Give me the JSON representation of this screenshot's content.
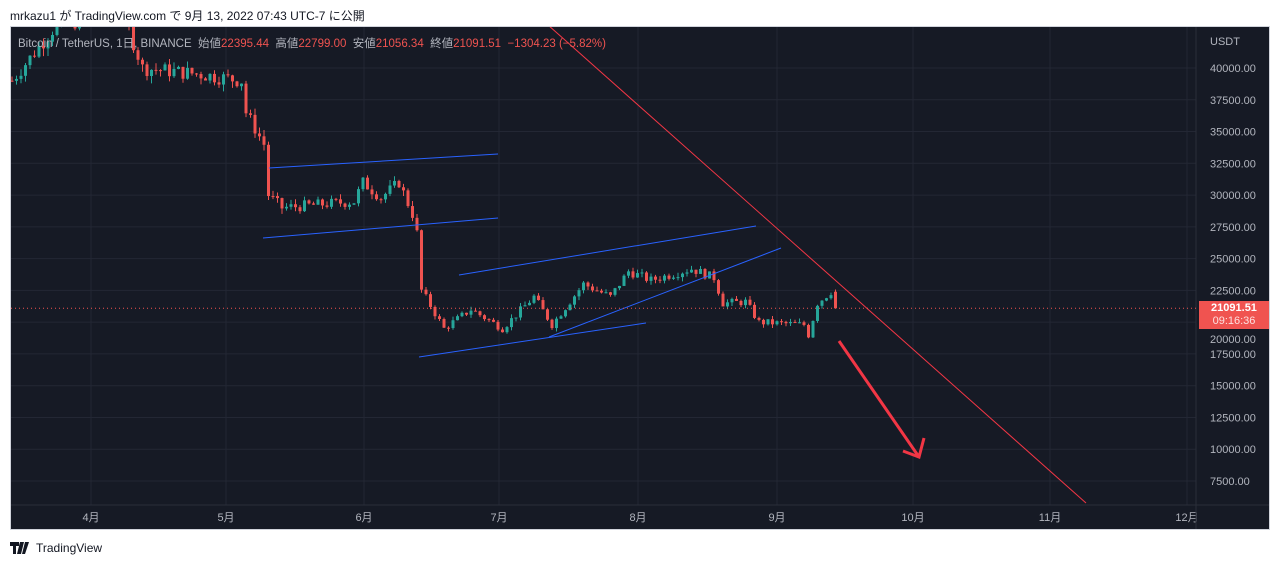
{
  "header": {
    "text": "mrkazu1 が TradingView.com で 9月 13, 2022 07:43 UTC-7 に公開"
  },
  "legend": {
    "symbol": "Bitcoin / TetherUS, 1日, BINANCE",
    "open_label": "始値",
    "open": "22395.44",
    "high_label": "高値",
    "high": "22799.00",
    "low_label": "安値",
    "low": "21056.34",
    "close_label": "終値",
    "close": "21091.51",
    "change": "−1304.23 (−5.82%)"
  },
  "price_axis": {
    "currency": "USDT",
    "ticks": [
      "40000.00",
      "37500.00",
      "35000.00",
      "32500.00",
      "30000.00",
      "27500.00",
      "25000.00",
      "22500.00",
      "20000.00",
      "17500.00",
      "15000.00",
      "12500.00",
      "10000.00",
      "7500.00"
    ]
  },
  "time_axis": {
    "ticks": [
      "4月",
      "5月",
      "6月",
      "7月",
      "8月",
      "9月",
      "10月",
      "11月",
      "12月"
    ]
  },
  "last_price": {
    "price": "21091.51",
    "countdown": "09:16:36"
  },
  "colors": {
    "up": "#26a69a",
    "down": "#ef5350",
    "trend": "#2962ff",
    "resistance": "#f23645"
  },
  "chart_data": {
    "type": "candlestick",
    "symbol": "BTCUSDT",
    "interval": "1D",
    "price_path_day_anchors": [
      [
        0,
        39000
      ],
      [
        9,
        43000
      ],
      [
        24,
        45000
      ],
      [
        29,
        40000
      ],
      [
        42,
        39500
      ],
      [
        51,
        39000
      ],
      [
        52,
        36500
      ],
      [
        56,
        34000
      ],
      [
        57,
        30000
      ],
      [
        60,
        29000
      ],
      [
        76,
        29500
      ],
      [
        78,
        31000
      ],
      [
        82,
        29800
      ],
      [
        86,
        31000
      ],
      [
        89,
        28500
      ],
      [
        90,
        27000
      ],
      [
        91,
        22500
      ],
      [
        96,
        19500
      ],
      [
        102,
        21000
      ],
      [
        109,
        19500
      ],
      [
        116,
        22000
      ],
      [
        120,
        19800
      ],
      [
        127,
        23000
      ],
      [
        133,
        22000
      ],
      [
        137,
        24000
      ],
      [
        142,
        23300
      ],
      [
        151,
        24200
      ],
      [
        156,
        23500
      ],
      [
        158,
        21500
      ],
      [
        163,
        21600
      ],
      [
        166,
        20000
      ],
      [
        176,
        19800
      ],
      [
        177,
        19000
      ],
      [
        179,
        21500
      ],
      [
        182,
        22400
      ],
      [
        183,
        21091
      ]
    ]
  },
  "footer": {
    "brand": "TradingView"
  }
}
